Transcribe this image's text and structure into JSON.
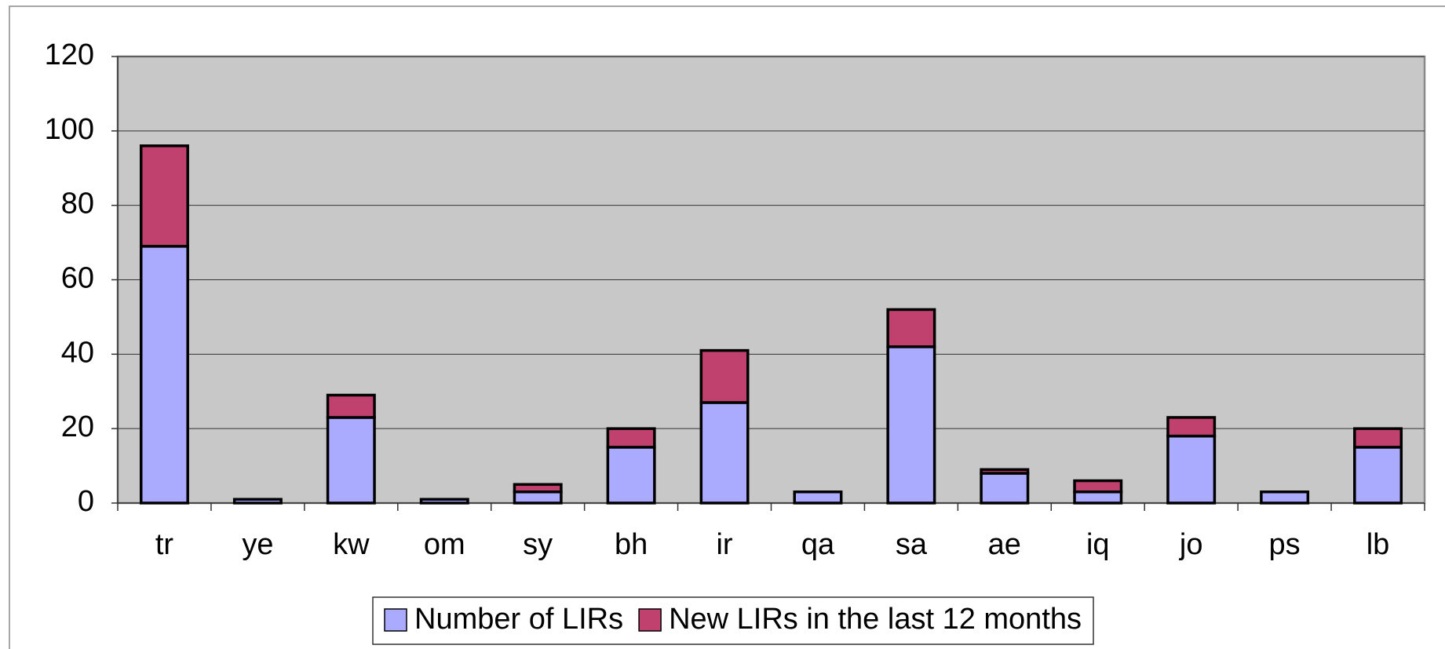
{
  "chart_data": {
    "type": "stacked_bar",
    "categories": [
      "tr",
      "ye",
      "kw",
      "om",
      "sy",
      "bh",
      "ir",
      "qa",
      "sa",
      "ae",
      "iq",
      "jo",
      "ps",
      "lb"
    ],
    "series": [
      {
        "name": "Number of LIRs",
        "color": "#aaaaff",
        "values": [
          69,
          1,
          23,
          1,
          3,
          15,
          27,
          3,
          42,
          8,
          3,
          18,
          3,
          15
        ]
      },
      {
        "name": "New LIRs in the last 12 months",
        "color": "#c0406e",
        "values": [
          27,
          0,
          6,
          0,
          2,
          5,
          14,
          0,
          10,
          1,
          3,
          5,
          0,
          5
        ]
      }
    ],
    "ylim": [
      0,
      120
    ],
    "yticks": [
      0,
      20,
      40,
      60,
      80,
      100,
      120
    ],
    "grid": true,
    "legend": "bottom"
  }
}
